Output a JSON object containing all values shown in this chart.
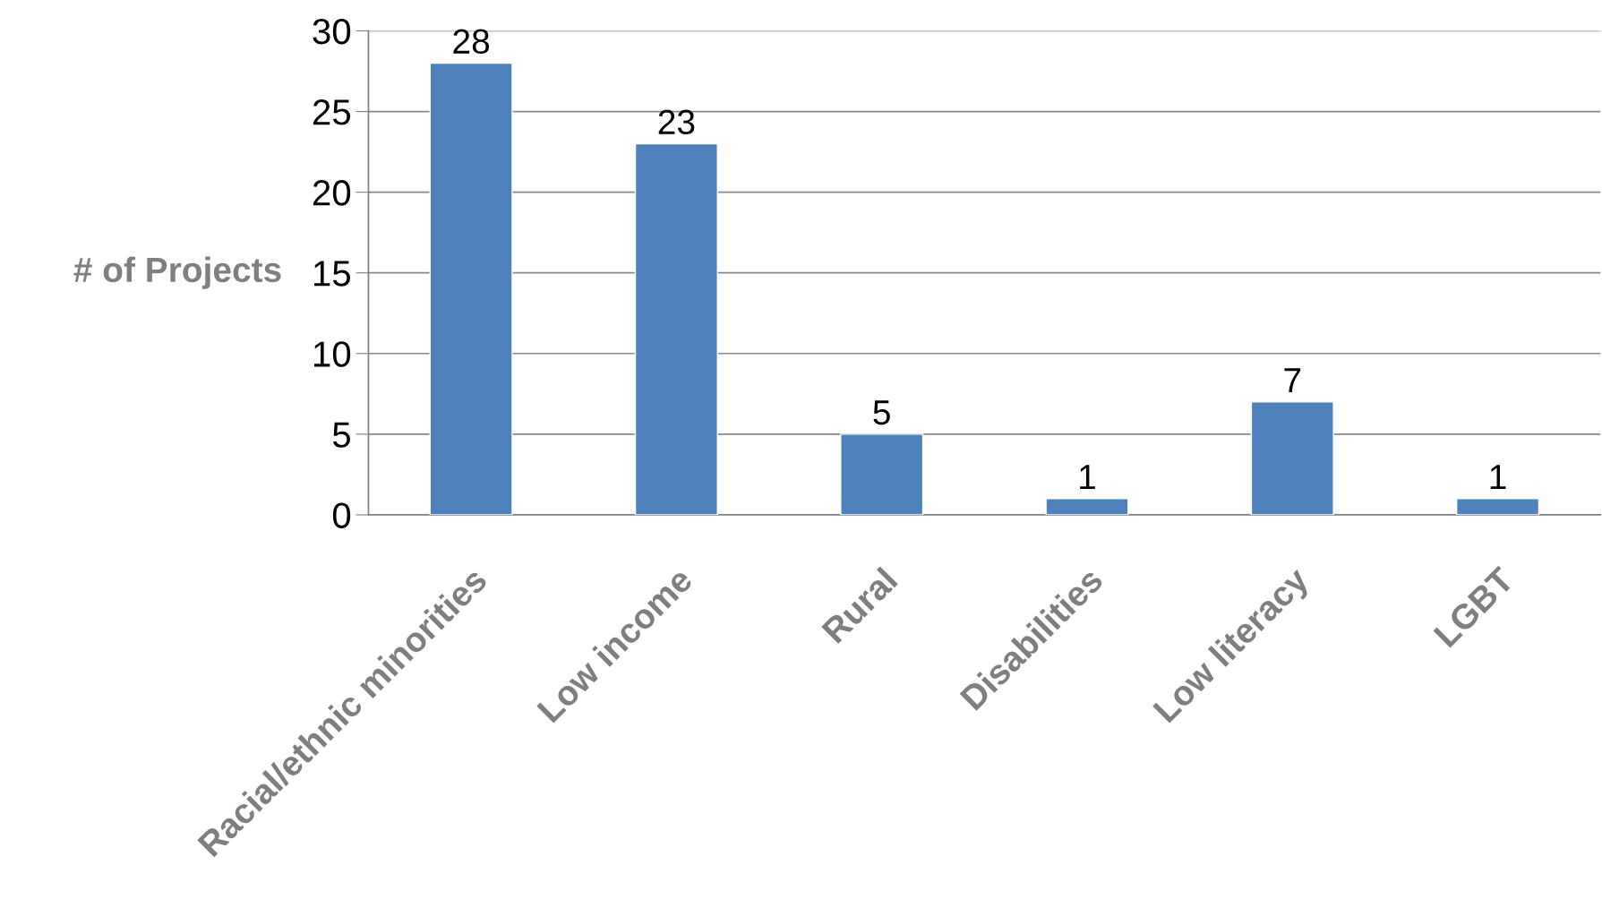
{
  "chart_data": {
    "type": "bar",
    "ylabel": "# of Projects",
    "categories": [
      "Racial/ethnic minorities",
      "Low income",
      "Rural",
      "Disabilities",
      "Low literacy",
      "LGBT"
    ],
    "values": [
      28,
      23,
      5,
      1,
      7,
      1
    ],
    "color": "#4f81bd",
    "ylim": [
      0,
      30
    ],
    "yticks": [
      0,
      5,
      10,
      15,
      20,
      25,
      30
    ],
    "grid": "y",
    "data_labels": true
  }
}
